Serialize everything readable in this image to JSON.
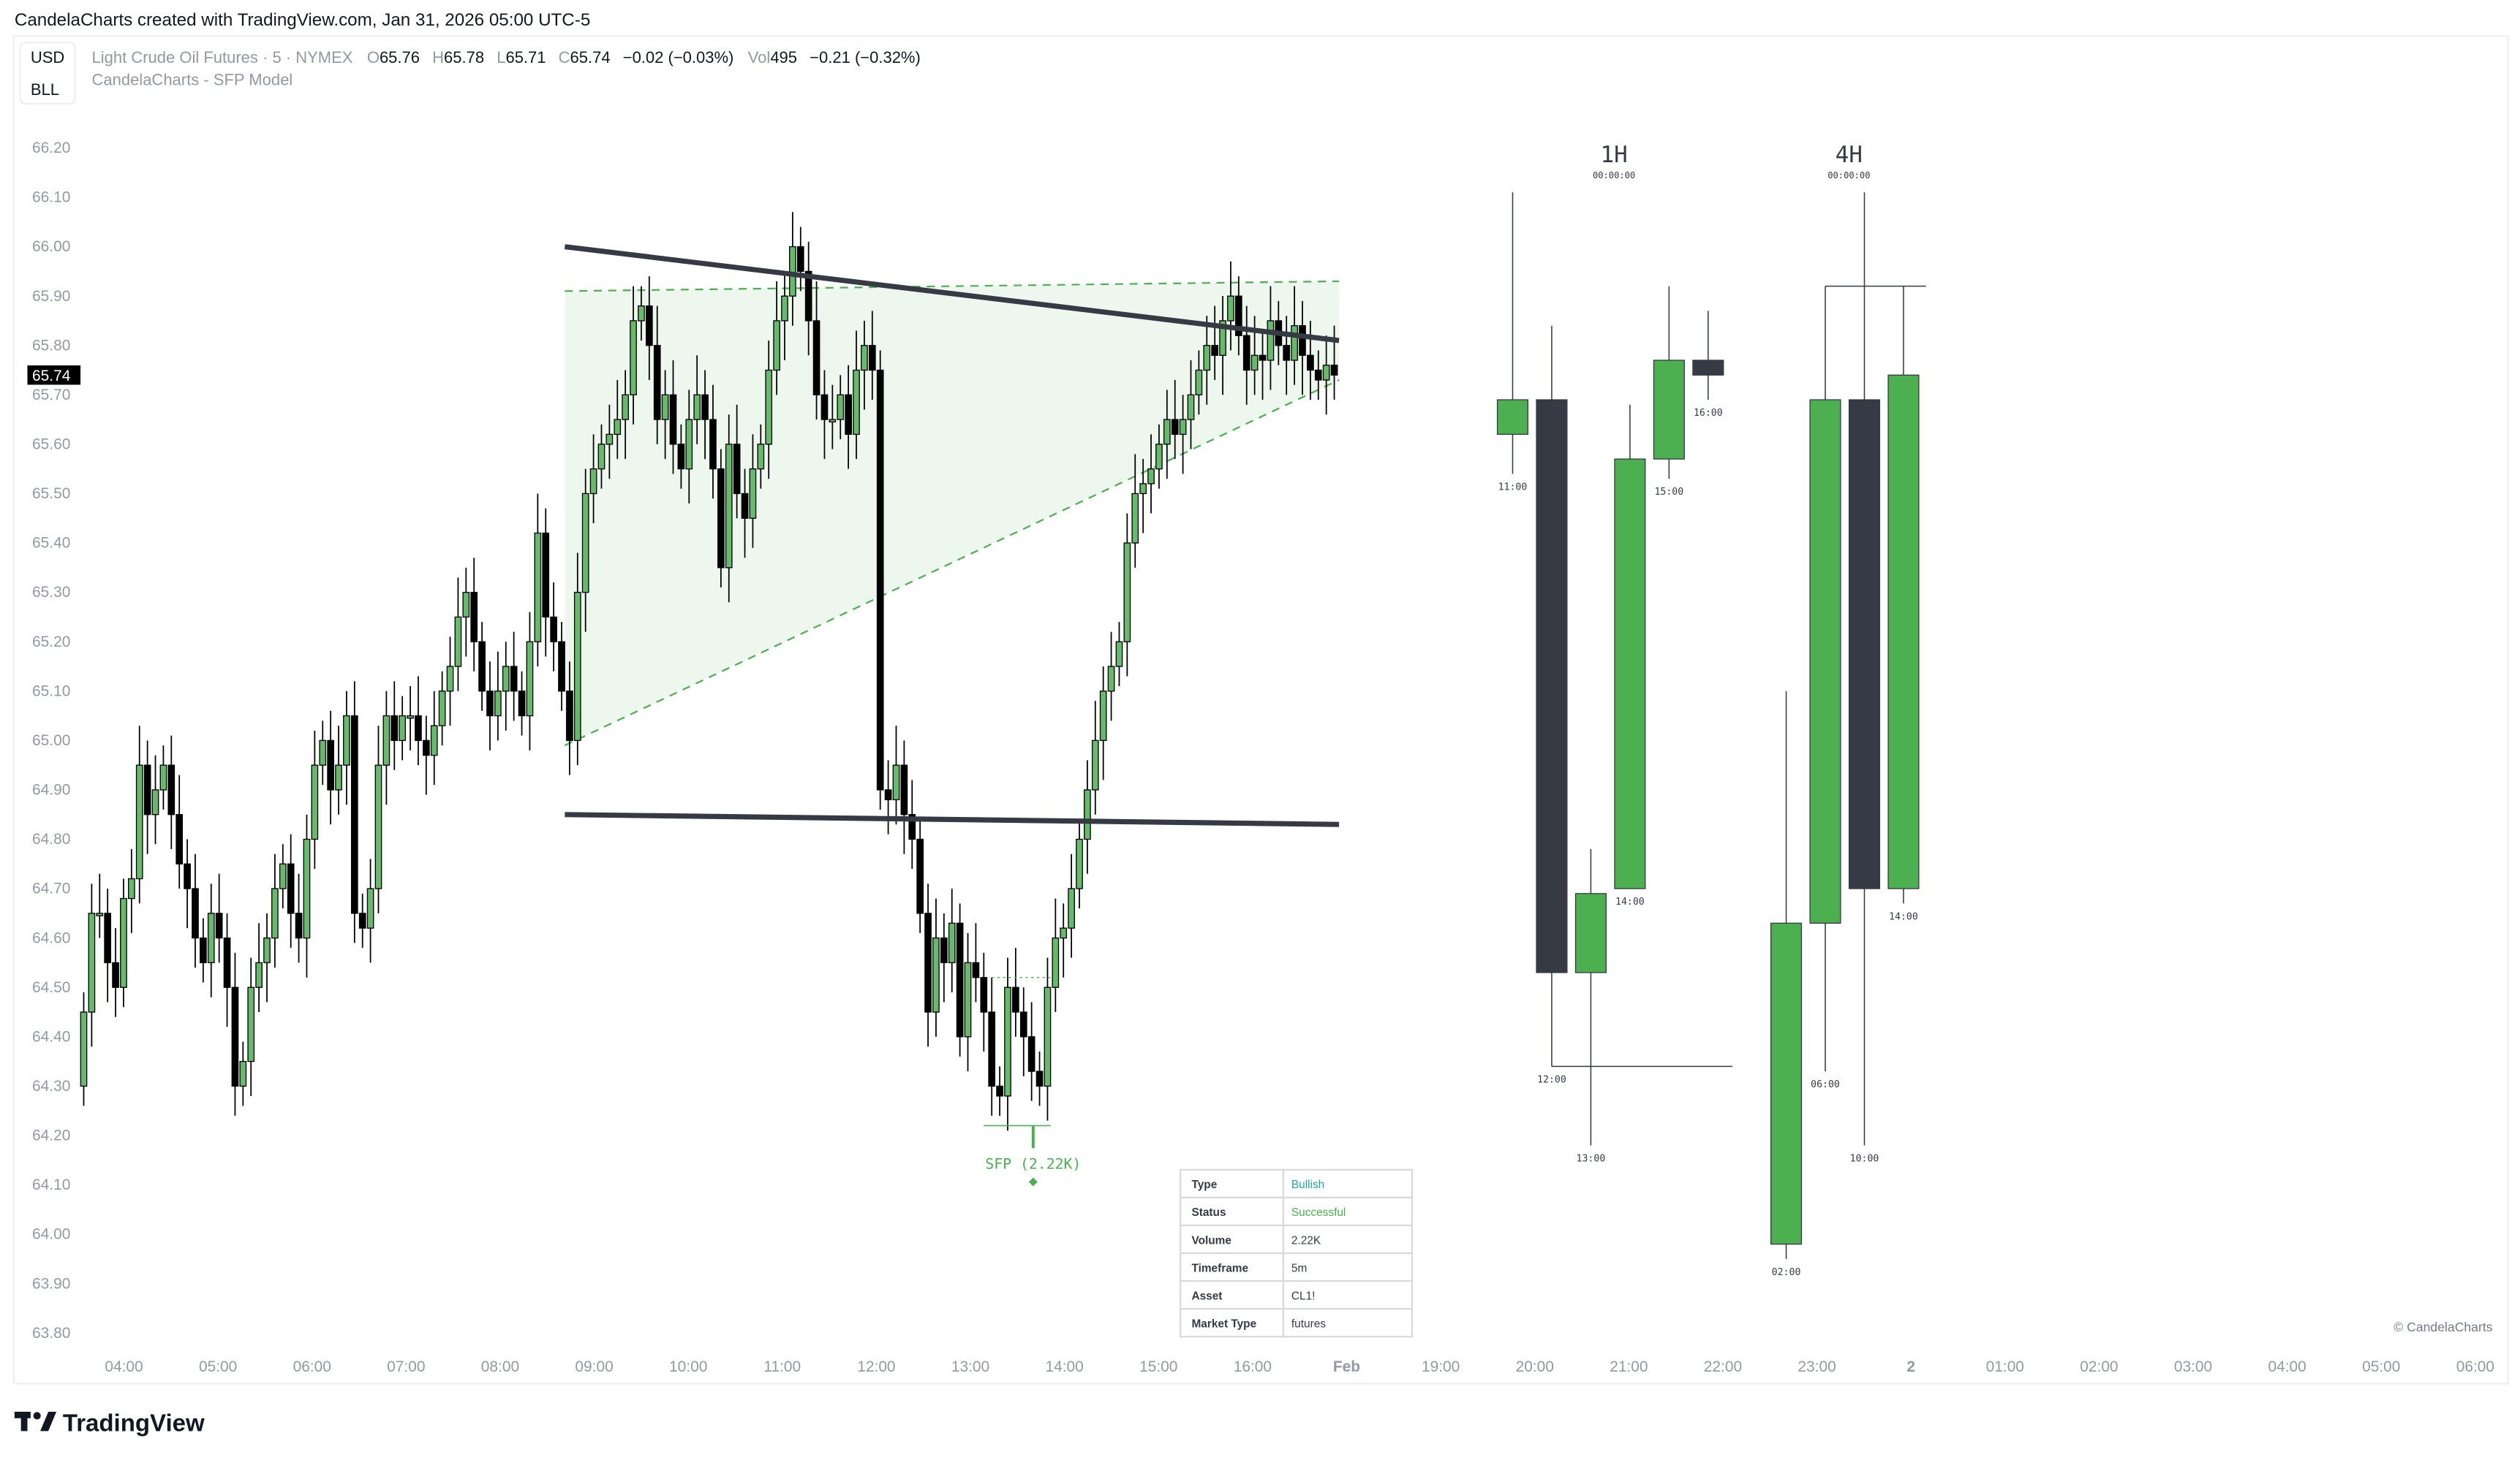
{
  "attribution": "CandelaCharts created with TradingView.com, Jan 31, 2026 05:00 UTC-5",
  "currency_box": {
    "currency": "USD",
    "unit": "BLL"
  },
  "legend": {
    "symbol": "Light Crude Oil Futures · 5 · NYMEX",
    "o_label": "O",
    "o": "65.76",
    "h_label": "H",
    "h": "65.78",
    "l_label": "L",
    "l": "65.71",
    "c_label": "C",
    "c": "65.74",
    "change": "−0.02 (−0.03%)",
    "vol_label": "Vol",
    "vol": "495",
    "vol_change": "−0.21 (−0.32%)",
    "indicator": "CandelaCharts - SFP Model"
  },
  "last_price": "65.74",
  "colors": {
    "up": "#66bb6a",
    "down": "#000000",
    "htf_up": "#4caf50",
    "htf_down": "#363a45",
    "zone": "#e8f5e9",
    "accent": "#4caf50",
    "bullish": "#26a69a"
  },
  "chart_data": {
    "type": "candlestick",
    "interval": "5m",
    "price_ticks": [
      "66.20",
      "66.10",
      "66.00",
      "65.90",
      "65.80",
      "65.70",
      "65.60",
      "65.50",
      "65.40",
      "65.30",
      "65.20",
      "65.10",
      "65.00",
      "64.90",
      "64.80",
      "64.70",
      "64.60",
      "64.50",
      "64.40",
      "64.30",
      "64.20",
      "64.10",
      "64.00",
      "63.90",
      "63.80"
    ],
    "ylim": [
      63.8,
      66.2
    ],
    "time_ticks": [
      "04:00",
      "05:00",
      "06:00",
      "07:00",
      "08:00",
      "09:00",
      "10:00",
      "11:00",
      "12:00",
      "13:00",
      "14:00",
      "15:00",
      "16:00",
      "Feb",
      "19:00",
      "20:00",
      "21:00",
      "22:00",
      "23:00",
      "2",
      "01:00",
      "02:00",
      "03:00",
      "04:00",
      "05:00",
      "06:00"
    ],
    "first_bar_time": "03:35",
    "first_open": 64.3,
    "closes": [
      64.45,
      64.65,
      64.65,
      64.55,
      64.5,
      64.68,
      64.72,
      64.95,
      64.85,
      64.9,
      64.95,
      64.85,
      64.75,
      64.7,
      64.6,
      64.55,
      64.65,
      64.6,
      64.5,
      64.3,
      64.35,
      64.5,
      64.55,
      64.6,
      64.7,
      64.75,
      64.65,
      64.6,
      64.8,
      64.95,
      65.0,
      64.9,
      64.95,
      65.05,
      64.65,
      64.62,
      64.7,
      64.95,
      65.05,
      65.0,
      65.05,
      65.05,
      65.0,
      64.97,
      65.03,
      65.1,
      65.15,
      65.25,
      65.3,
      65.2,
      65.1,
      65.05,
      65.1,
      65.15,
      65.1,
      65.05,
      65.2,
      65.42,
      65.25,
      65.2,
      65.1,
      65.0,
      65.3,
      65.5,
      65.55,
      65.6,
      65.62,
      65.65,
      65.7,
      65.85,
      65.88,
      65.8,
      65.65,
      65.7,
      65.6,
      65.55,
      65.65,
      65.7,
      65.65,
      65.55,
      65.35,
      65.6,
      65.5,
      65.45,
      65.55,
      65.6,
      65.75,
      65.85,
      65.9,
      66.0,
      65.95,
      65.85,
      65.7,
      65.65,
      65.65,
      65.7,
      65.62,
      65.75,
      65.8,
      65.75,
      64.9,
      64.88,
      64.95,
      64.85,
      64.8,
      64.65,
      64.45,
      64.6,
      64.55,
      64.63,
      64.4,
      64.55,
      64.52,
      64.45,
      64.3,
      64.28,
      64.5,
      64.45,
      64.4,
      64.33,
      64.3,
      64.5,
      64.6,
      64.62,
      64.7,
      64.8,
      64.9,
      65.0,
      65.1,
      65.15,
      65.2,
      65.4,
      65.5,
      65.52,
      65.55,
      65.6,
      65.65,
      65.62,
      65.65,
      65.7,
      65.75,
      65.8,
      65.78,
      65.85,
      65.9,
      65.82,
      65.75,
      65.78,
      65.77,
      65.85,
      65.8,
      65.77,
      65.84,
      65.78,
      65.75,
      65.73,
      65.76,
      65.74
    ],
    "trendlines": [
      {
        "kind": "resistance",
        "from": [
          60.4,
          66.0
        ],
        "to": [
          157.6,
          65.81
        ]
      },
      {
        "kind": "support",
        "from": [
          60.4,
          64.85
        ],
        "to": [
          157.6,
          64.83
        ]
      }
    ],
    "zone": {
      "upper": [
        [
          60.4,
          65.91
        ],
        [
          157.6,
          65.93
        ]
      ],
      "lower": [
        [
          60.4,
          64.99
        ],
        [
          157.6,
          65.73
        ]
      ]
    },
    "sfp": {
      "label": "SFP (2.22K)",
      "bar": 119,
      "sweep_level": 64.22,
      "sweep_from": 113,
      "sweep_to": 121,
      "prior_high": 64.52
    }
  },
  "htf": [
    {
      "title": "1H",
      "timer": "00:00:00",
      "level": 64.34,
      "candles": [
        {
          "time": "11:00",
          "o": 65.62,
          "h": 66.11,
          "l": 65.54,
          "c": 65.69
        },
        {
          "time": "12:00",
          "o": 65.69,
          "h": 65.84,
          "l": 64.34,
          "c": 64.53
        },
        {
          "time": "13:00",
          "o": 64.53,
          "h": 64.78,
          "l": 64.18,
          "c": 64.69
        },
        {
          "time": "14:00",
          "o": 64.7,
          "h": 65.68,
          "l": 64.7,
          "c": 65.57
        },
        {
          "time": "15:00",
          "o": 65.57,
          "h": 65.92,
          "l": 65.53,
          "c": 65.77
        },
        {
          "time": "16:00",
          "o": 65.77,
          "h": 65.87,
          "l": 65.69,
          "c": 65.74
        }
      ]
    },
    {
      "title": "4H",
      "timer": "00:00:00",
      "level": 65.92,
      "candles": [
        {
          "time": "02:00",
          "o": 63.98,
          "h": 65.1,
          "l": 63.95,
          "c": 64.63
        },
        {
          "time": "06:00",
          "o": 64.63,
          "h": 65.92,
          "l": 64.33,
          "c": 65.69
        },
        {
          "time": "10:00",
          "o": 65.69,
          "h": 66.11,
          "l": 64.18,
          "c": 64.7
        },
        {
          "time": "14:00",
          "o": 64.7,
          "h": 65.92,
          "l": 64.67,
          "c": 65.74
        }
      ]
    }
  ],
  "info_table": [
    {
      "key": "Type",
      "value": "Bullish"
    },
    {
      "key": "Status",
      "value": "Successful"
    },
    {
      "key": "Volume",
      "value": "2.22K"
    },
    {
      "key": "Timeframe",
      "value": "5m"
    },
    {
      "key": "Asset",
      "value": "CL1!"
    },
    {
      "key": "Market Type",
      "value": "futures"
    }
  ],
  "watermark": "© CandelaCharts",
  "logo": "TradingView"
}
